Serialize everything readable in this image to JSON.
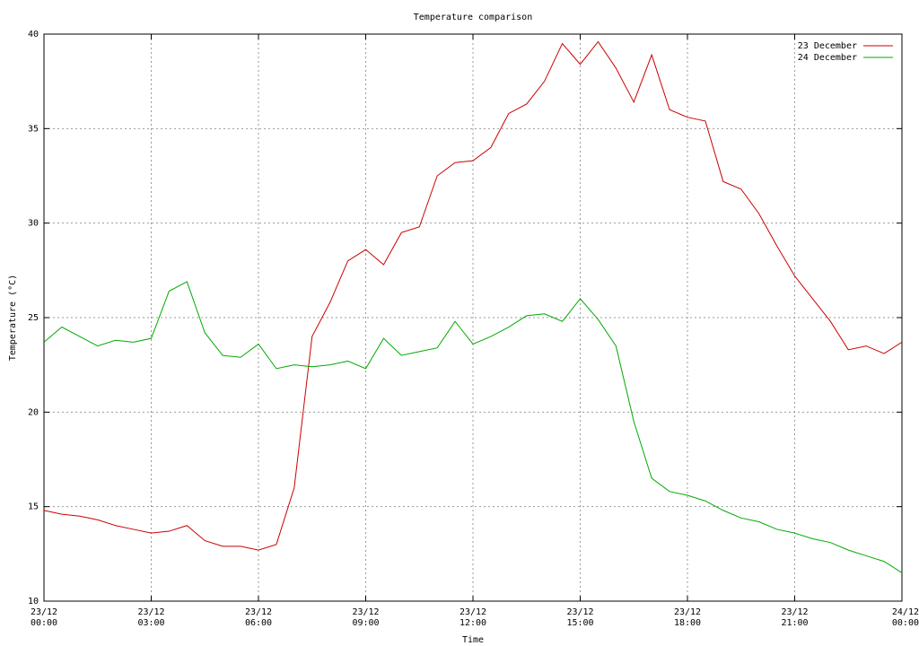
{
  "chart_data": {
    "type": "line",
    "title": "Temperature comparison",
    "xlabel": "Time",
    "ylabel": "Temperature (°C)",
    "x": [
      0,
      0.5,
      1,
      1.5,
      2,
      2.5,
      3,
      3.5,
      4,
      4.5,
      5,
      5.5,
      6,
      6.5,
      7,
      7.5,
      8,
      8.5,
      9,
      9.5,
      10,
      10.5,
      11,
      11.5,
      12,
      12.5,
      13,
      13.5,
      14,
      14.5,
      15,
      15.5,
      16,
      16.5,
      17,
      17.5,
      18,
      18.5,
      19,
      19.5,
      20,
      20.5,
      21,
      21.5,
      22,
      22.5,
      23,
      23.5,
      24
    ],
    "series": [
      {
        "name": "23 December",
        "color": "#cc0000",
        "values": [
          14.8,
          14.6,
          14.5,
          14.3,
          14.0,
          13.8,
          13.6,
          13.7,
          14.0,
          13.2,
          12.9,
          12.9,
          12.7,
          13.0,
          16.0,
          24.0,
          25.8,
          28.0,
          28.6,
          27.8,
          29.5,
          29.8,
          32.5,
          33.2,
          33.3,
          34.0,
          35.8,
          36.3,
          37.5,
          39.5,
          38.4,
          39.6,
          38.2,
          36.4,
          38.9,
          36.0,
          35.6,
          35.4,
          32.2,
          31.8,
          30.5,
          28.8,
          27.2,
          26.0,
          24.8,
          23.3,
          23.5,
          23.1,
          23.7
        ]
      },
      {
        "name": "24 December",
        "color": "#00aa00",
        "values": [
          23.7,
          24.5,
          24.0,
          23.5,
          23.8,
          23.7,
          23.9,
          26.4,
          26.9,
          24.2,
          23.0,
          22.9,
          23.6,
          22.3,
          22.5,
          22.4,
          22.5,
          22.7,
          22.3,
          23.9,
          23.0,
          23.2,
          23.4,
          24.8,
          23.6,
          24.0,
          24.5,
          25.1,
          25.2,
          24.8,
          26.0,
          24.9,
          23.5,
          19.5,
          16.5,
          15.8,
          15.6,
          15.3,
          14.8,
          14.4,
          14.2,
          13.8,
          13.6,
          13.3,
          13.1,
          12.7,
          12.4,
          12.1,
          11.5
        ]
      }
    ],
    "xlim": [
      0,
      24
    ],
    "xticks": [
      {
        "value": 0,
        "label": "23/12\n00:00"
      },
      {
        "value": 3,
        "label": "23/12\n03:00"
      },
      {
        "value": 6,
        "label": "23/12\n06:00"
      },
      {
        "value": 9,
        "label": "23/12\n09:00"
      },
      {
        "value": 12,
        "label": "23/12\n12:00"
      },
      {
        "value": 15,
        "label": "23/12\n15:00"
      },
      {
        "value": 18,
        "label": "23/12\n18:00"
      },
      {
        "value": 21,
        "label": "23/12\n21:00"
      },
      {
        "value": 24,
        "label": "24/12\n00:00"
      }
    ],
    "ylim": [
      10,
      40
    ],
    "yticks": [
      10,
      15,
      20,
      25,
      30,
      35,
      40
    ],
    "grid": true,
    "legend": "top-right"
  }
}
